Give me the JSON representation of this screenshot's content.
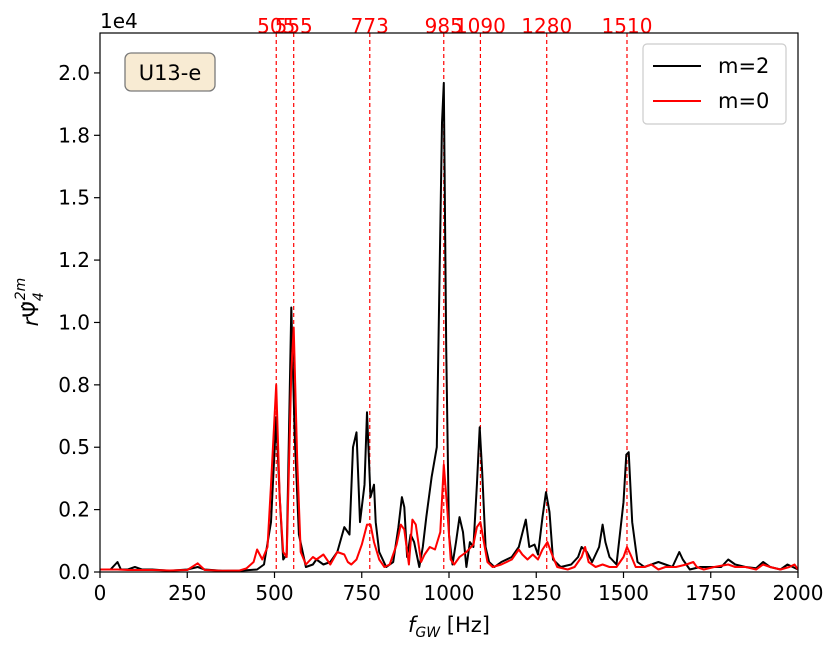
{
  "chart_data": {
    "type": "line",
    "xlabel": "f_GW [Hz]",
    "ylabel": "rΨ̂4^2m",
    "y_offset_text": "1e4",
    "annotation": "U13-e",
    "xlim": [
      0,
      2000
    ],
    "ylim": [
      0,
      21600
    ],
    "x_ticks": [
      0,
      250,
      500,
      750,
      1000,
      1250,
      1500,
      1750,
      2000
    ],
    "y_ticks": [
      0,
      2500,
      5000,
      7500,
      10000,
      12500,
      15000,
      17500,
      20000
    ],
    "y_tick_labels": [
      "0.0",
      "0.2",
      "0.5",
      "0.8",
      "1.0",
      "1.2",
      "1.5",
      "1.8",
      "2.0"
    ],
    "grid": false,
    "legend_position": "upper right",
    "peak_lines": [
      505,
      555,
      773,
      985,
      1090,
      1280,
      1510
    ],
    "peak_color": "#ff0000",
    "series": [
      {
        "name": "m=2",
        "color": "#000000",
        "points": [
          [
            0,
            100
          ],
          [
            30,
            100
          ],
          [
            50,
            400
          ],
          [
            60,
            100
          ],
          [
            80,
            100
          ],
          [
            100,
            200
          ],
          [
            120,
            100
          ],
          [
            150,
            100
          ],
          [
            200,
            50
          ],
          [
            250,
            100
          ],
          [
            280,
            200
          ],
          [
            300,
            100
          ],
          [
            350,
            50
          ],
          [
            400,
            50
          ],
          [
            450,
            100
          ],
          [
            470,
            300
          ],
          [
            490,
            2000
          ],
          [
            505,
            6200
          ],
          [
            515,
            3000
          ],
          [
            525,
            500
          ],
          [
            535,
            700
          ],
          [
            548,
            10600
          ],
          [
            558,
            5500
          ],
          [
            570,
            1500
          ],
          [
            590,
            200
          ],
          [
            610,
            300
          ],
          [
            620,
            500
          ],
          [
            640,
            300
          ],
          [
            660,
            400
          ],
          [
            680,
            800
          ],
          [
            700,
            1800
          ],
          [
            715,
            1500
          ],
          [
            725,
            5000
          ],
          [
            735,
            5600
          ],
          [
            745,
            2000
          ],
          [
            758,
            3500
          ],
          [
            765,
            6400
          ],
          [
            775,
            3000
          ],
          [
            785,
            3500
          ],
          [
            790,
            2000
          ],
          [
            800,
            800
          ],
          [
            820,
            200
          ],
          [
            840,
            400
          ],
          [
            855,
            1800
          ],
          [
            865,
            3000
          ],
          [
            872,
            2600
          ],
          [
            880,
            600
          ],
          [
            890,
            1500
          ],
          [
            900,
            1200
          ],
          [
            915,
            200
          ],
          [
            925,
            1000
          ],
          [
            935,
            2200
          ],
          [
            950,
            3800
          ],
          [
            965,
            5000
          ],
          [
            980,
            18000
          ],
          [
            985,
            19600
          ],
          [
            992,
            9000
          ],
          [
            1000,
            1500
          ],
          [
            1010,
            300
          ],
          [
            1020,
            1200
          ],
          [
            1030,
            2200
          ],
          [
            1040,
            1600
          ],
          [
            1050,
            200
          ],
          [
            1060,
            1200
          ],
          [
            1070,
            1000
          ],
          [
            1080,
            3500
          ],
          [
            1088,
            5800
          ],
          [
            1095,
            4000
          ],
          [
            1105,
            1000
          ],
          [
            1115,
            400
          ],
          [
            1130,
            200
          ],
          [
            1150,
            400
          ],
          [
            1180,
            600
          ],
          [
            1200,
            1000
          ],
          [
            1220,
            2100
          ],
          [
            1230,
            1000
          ],
          [
            1245,
            1100
          ],
          [
            1255,
            700
          ],
          [
            1268,
            2200
          ],
          [
            1278,
            3200
          ],
          [
            1288,
            2400
          ],
          [
            1298,
            500
          ],
          [
            1320,
            200
          ],
          [
            1350,
            300
          ],
          [
            1370,
            600
          ],
          [
            1380,
            1000
          ],
          [
            1395,
            800
          ],
          [
            1410,
            400
          ],
          [
            1420,
            700
          ],
          [
            1430,
            1000
          ],
          [
            1440,
            1900
          ],
          [
            1448,
            1200
          ],
          [
            1460,
            600
          ],
          [
            1480,
            300
          ],
          [
            1500,
            2800
          ],
          [
            1508,
            4700
          ],
          [
            1515,
            4800
          ],
          [
            1525,
            2000
          ],
          [
            1540,
            400
          ],
          [
            1560,
            200
          ],
          [
            1580,
            300
          ],
          [
            1600,
            400
          ],
          [
            1620,
            300
          ],
          [
            1640,
            200
          ],
          [
            1660,
            800
          ],
          [
            1670,
            500
          ],
          [
            1690,
            100
          ],
          [
            1720,
            200
          ],
          [
            1750,
            200
          ],
          [
            1780,
            200
          ],
          [
            1800,
            500
          ],
          [
            1820,
            300
          ],
          [
            1850,
            200
          ],
          [
            1880,
            150
          ],
          [
            1900,
            400
          ],
          [
            1920,
            200
          ],
          [
            1950,
            100
          ],
          [
            1970,
            300
          ],
          [
            1985,
            200
          ],
          [
            2000,
            100
          ]
        ]
      },
      {
        "name": "m=0",
        "color": "#ff0000",
        "points": [
          [
            0,
            100
          ],
          [
            50,
            100
          ],
          [
            80,
            80
          ],
          [
            100,
            80
          ],
          [
            150,
            80
          ],
          [
            200,
            60
          ],
          [
            250,
            80
          ],
          [
            280,
            350
          ],
          [
            300,
            80
          ],
          [
            350,
            50
          ],
          [
            400,
            60
          ],
          [
            420,
            150
          ],
          [
            440,
            400
          ],
          [
            450,
            900
          ],
          [
            465,
            500
          ],
          [
            480,
            1000
          ],
          [
            490,
            3500
          ],
          [
            505,
            7500
          ],
          [
            515,
            3000
          ],
          [
            525,
            800
          ],
          [
            535,
            600
          ],
          [
            548,
            8000
          ],
          [
            555,
            9800
          ],
          [
            565,
            4500
          ],
          [
            575,
            800
          ],
          [
            590,
            300
          ],
          [
            610,
            600
          ],
          [
            620,
            500
          ],
          [
            640,
            700
          ],
          [
            660,
            300
          ],
          [
            680,
            800
          ],
          [
            700,
            700
          ],
          [
            710,
            400
          ],
          [
            720,
            300
          ],
          [
            735,
            500
          ],
          [
            750,
            1100
          ],
          [
            765,
            1900
          ],
          [
            775,
            1900
          ],
          [
            785,
            1200
          ],
          [
            800,
            500
          ],
          [
            815,
            200
          ],
          [
            830,
            300
          ],
          [
            850,
            1100
          ],
          [
            862,
            1900
          ],
          [
            872,
            1700
          ],
          [
            885,
            300
          ],
          [
            895,
            2100
          ],
          [
            905,
            1900
          ],
          [
            920,
            400
          ],
          [
            930,
            700
          ],
          [
            945,
            1000
          ],
          [
            960,
            900
          ],
          [
            975,
            1600
          ],
          [
            985,
            4300
          ],
          [
            995,
            2500
          ],
          [
            1005,
            500
          ],
          [
            1015,
            300
          ],
          [
            1030,
            600
          ],
          [
            1050,
            800
          ],
          [
            1070,
            1100
          ],
          [
            1080,
            1800
          ],
          [
            1090,
            2000
          ],
          [
            1100,
            1200
          ],
          [
            1110,
            400
          ],
          [
            1125,
            200
          ],
          [
            1150,
            300
          ],
          [
            1180,
            500
          ],
          [
            1200,
            900
          ],
          [
            1210,
            700
          ],
          [
            1225,
            500
          ],
          [
            1240,
            700
          ],
          [
            1255,
            500
          ],
          [
            1268,
            900
          ],
          [
            1282,
            1200
          ],
          [
            1295,
            700
          ],
          [
            1310,
            200
          ],
          [
            1340,
            100
          ],
          [
            1360,
            200
          ],
          [
            1380,
            600
          ],
          [
            1390,
            1000
          ],
          [
            1400,
            400
          ],
          [
            1420,
            200
          ],
          [
            1440,
            300
          ],
          [
            1460,
            200
          ],
          [
            1480,
            200
          ],
          [
            1500,
            600
          ],
          [
            1510,
            1000
          ],
          [
            1520,
            700
          ],
          [
            1535,
            200
          ],
          [
            1560,
            200
          ],
          [
            1580,
            300
          ],
          [
            1600,
            100
          ],
          [
            1620,
            200
          ],
          [
            1650,
            200
          ],
          [
            1680,
            300
          ],
          [
            1700,
            400
          ],
          [
            1710,
            200
          ],
          [
            1730,
            100
          ],
          [
            1760,
            200
          ],
          [
            1800,
            300
          ],
          [
            1820,
            200
          ],
          [
            1850,
            200
          ],
          [
            1880,
            100
          ],
          [
            1900,
            300
          ],
          [
            1920,
            200
          ],
          [
            1950,
            100
          ],
          [
            1975,
            200
          ],
          [
            1990,
            300
          ],
          [
            2000,
            100
          ]
        ]
      }
    ]
  }
}
